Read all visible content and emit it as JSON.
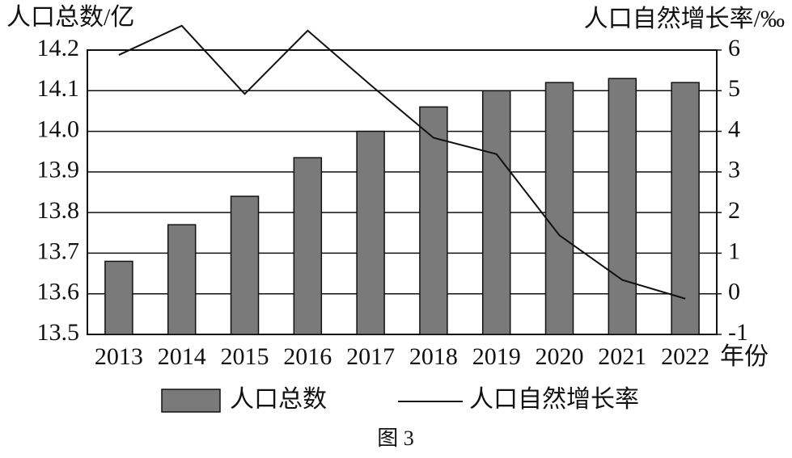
{
  "chart_data": {
    "type": "bar",
    "ylabel": "人口总数/亿",
    "y2label": "人口自然增长率/‰",
    "xlabel": "年份",
    "caption": "图 3",
    "categories": [
      "2013",
      "2014",
      "2015",
      "2016",
      "2017",
      "2018",
      "2019",
      "2020",
      "2021",
      "2022"
    ],
    "series": [
      {
        "name": "人口总数",
        "type": "bar",
        "color": "#7a7a7a",
        "axis": "y",
        "values": [
          13.68,
          13.77,
          13.84,
          13.935,
          14.0,
          14.06,
          14.1,
          14.12,
          14.13,
          14.12
        ]
      },
      {
        "name": "人口自然增长率",
        "type": "line",
        "color": "#111111",
        "axis": "y2",
        "values": [
          5.88,
          6.6,
          4.92,
          6.48,
          5.14,
          3.84,
          3.44,
          1.44,
          0.34,
          -0.12
        ]
      }
    ],
    "ylim": [
      13.5,
      14.2
    ],
    "yticks": [
      13.5,
      13.6,
      13.7,
      13.8,
      13.9,
      {
        "value": 14,
        "label": "14.0"
      },
      14.1,
      14.2
    ],
    "y2lim": [
      -1,
      6
    ],
    "y2ticks": [
      -1,
      0,
      1,
      2,
      3,
      4,
      5,
      6
    ],
    "grid": true
  }
}
